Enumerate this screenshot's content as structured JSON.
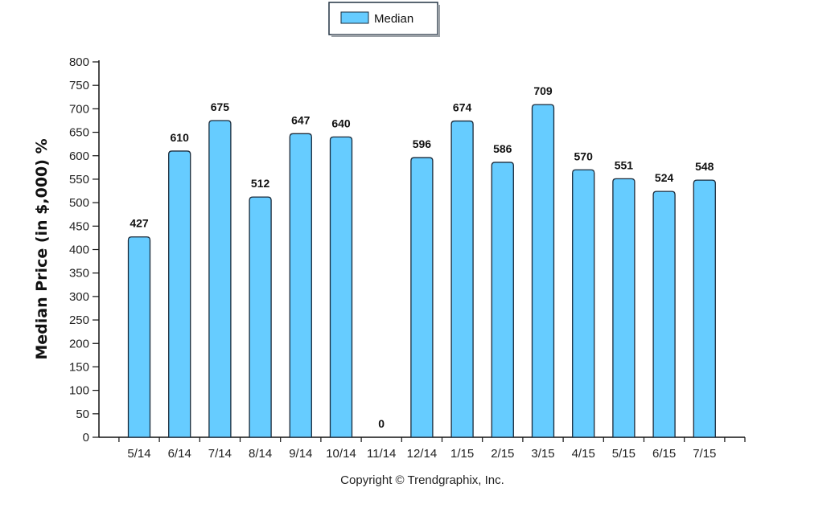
{
  "chart_data": {
    "type": "bar",
    "ylabel": "Median Price (in $,000) %",
    "xlabel": "",
    "categories": [
      "5/14",
      "6/14",
      "7/14",
      "8/14",
      "9/14",
      "10/14",
      "11/14",
      "12/14",
      "1/15",
      "2/15",
      "3/15",
      "4/15",
      "5/15",
      "6/15",
      "7/15"
    ],
    "series": [
      {
        "name": "Median",
        "values": [
          427,
          610,
          675,
          512,
          647,
          640,
          0,
          596,
          674,
          586,
          709,
          570,
          551,
          524,
          548
        ]
      }
    ],
    "ylim": [
      0,
      800
    ],
    "yticks": [
      0,
      50,
      100,
      150,
      200,
      250,
      300,
      350,
      400,
      450,
      500,
      550,
      600,
      650,
      700,
      750,
      800
    ],
    "legend": "top-center",
    "grid": false,
    "bar_color": "#66ccff",
    "bar_edge_color": "#1a2a3a",
    "data_labels": true
  },
  "copyright": "Copyright © Trendgraphix, Inc."
}
